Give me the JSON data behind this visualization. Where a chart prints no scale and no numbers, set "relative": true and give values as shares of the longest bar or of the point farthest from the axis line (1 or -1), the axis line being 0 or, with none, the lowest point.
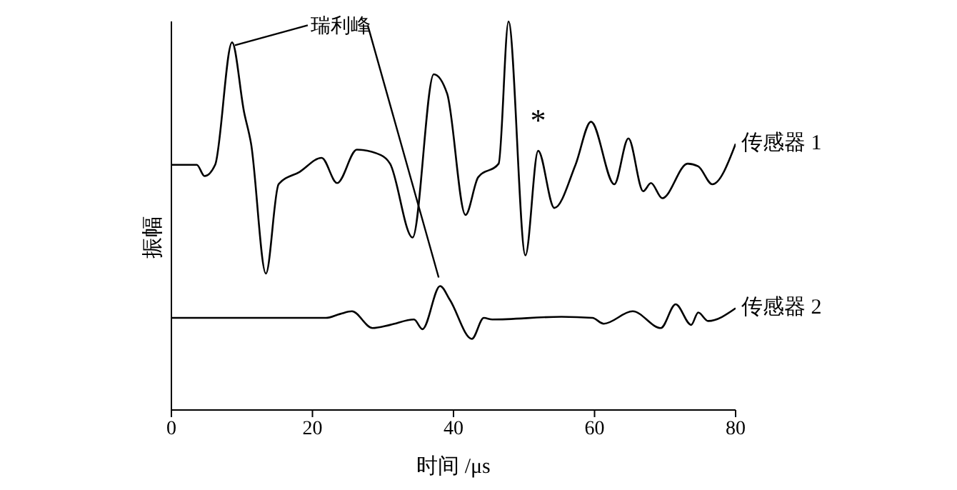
{
  "chart_data": {
    "type": "line",
    "relative": true,
    "xlabel": "时间 /μs",
    "ylabel": "振幅",
    "xlim": [
      0,
      80
    ],
    "xticks": [
      0,
      20,
      40,
      60,
      80
    ],
    "grid": false,
    "legend": false,
    "marker": "none",
    "line_style": "solid",
    "annotations": [
      {
        "text": "瑞利峰",
        "x": 8.6,
        "y": 0.946
      },
      {
        "text": "*",
        "x": 52,
        "y": 0.667
      }
    ],
    "series": [
      {
        "name": "传感器 1",
        "color": "#000000",
        "x": [
          0,
          3.6,
          4.7,
          6.2,
          8.6,
          10.3,
          11.3,
          13.4,
          15.2,
          18.2,
          21.3,
          23.5,
          26.3,
          29.7,
          31,
          34.2,
          37.2,
          39.1,
          41.7,
          43.5,
          46.4,
          47.8,
          50.2,
          52,
          54.3,
          57.3,
          59.5,
          62.8,
          64.8,
          66.9,
          68,
          69.6,
          73.2,
          74.7,
          76.7,
          80
        ],
        "values": [
          0.631,
          0.631,
          0.602,
          0.631,
          0.946,
          0.767,
          0.685,
          0.351,
          0.581,
          0.613,
          0.649,
          0.584,
          0.67,
          0.656,
          0.634,
          0.444,
          0.864,
          0.814,
          0.502,
          0.599,
          0.634,
          1,
          0.398,
          0.667,
          0.52,
          0.631,
          0.742,
          0.581,
          0.699,
          0.563,
          0.584,
          0.545,
          0.634,
          0.627,
          0.581,
          0.685
        ]
      },
      {
        "name": "传感器 2",
        "color": "#000000",
        "x": [
          0,
          21.9,
          23.9,
          25.6,
          28.5,
          31,
          34.4,
          35.6,
          38.1,
          39.5,
          42.6,
          44.3,
          45.5,
          55.3,
          59.7,
          61.3,
          65.4,
          69.4,
          71.5,
          73.7,
          74.7,
          76.1,
          80
        ],
        "values": [
          0.237,
          0.237,
          0.247,
          0.254,
          0.211,
          0.219,
          0.233,
          0.208,
          0.319,
          0.283,
          0.183,
          0.237,
          0.233,
          0.24,
          0.237,
          0.222,
          0.254,
          0.211,
          0.272,
          0.219,
          0.251,
          0.229,
          0.262
        ]
      }
    ]
  }
}
